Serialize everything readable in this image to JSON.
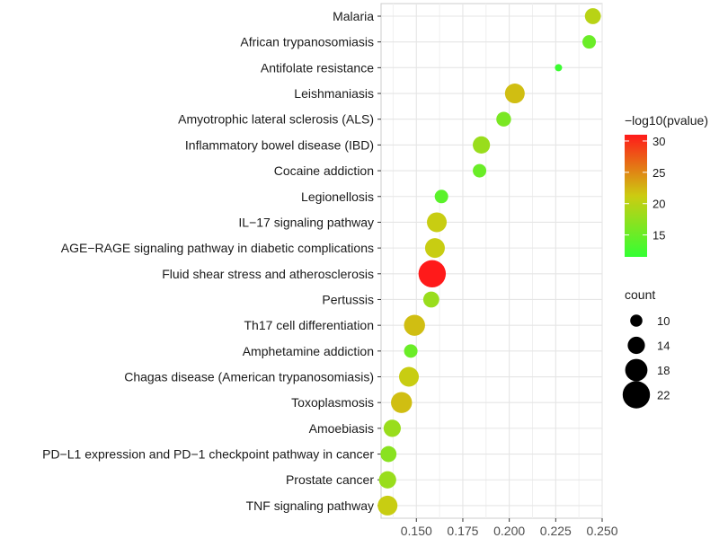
{
  "chart_data": {
    "type": "scatter",
    "title": "",
    "xlabel": "",
    "ylabel": "",
    "xlim": [
      0.131,
      0.25
    ],
    "x_ticks": [
      0.15,
      0.175,
      0.2,
      0.225,
      0.25
    ],
    "x_tick_labels": [
      "0.150",
      "0.175",
      "0.200",
      "0.225",
      "0.250"
    ],
    "grid": true,
    "categories": [
      "Malaria",
      "African trypanosomiasis",
      "Antifolate resistance",
      "Leishmaniasis",
      "Amyotrophic lateral sclerosis (ALS)",
      "Inflammatory bowel disease (IBD)",
      "Cocaine addiction",
      "Legionellosis",
      "IL−17 signaling pathway",
      "AGE−RAGE signaling pathway in diabetic complications",
      "Fluid shear stress and atherosclerosis",
      "Pertussis",
      "Th17 cell differentiation",
      "Amphetamine addiction",
      "Chagas disease (American trypanosomiasis)",
      "Toxoplasmosis",
      "Amoebiasis",
      "PD−L1 expression and PD−1 checkpoint pathway in cancer",
      "Prostate cancer",
      "TNF signaling pathway"
    ],
    "points": [
      {
        "term": "Malaria",
        "gene_ratio": 0.245,
        "count": 13,
        "neglog10p": 20
      },
      {
        "term": "African trypanosomiasis",
        "gene_ratio": 0.243,
        "count": 11,
        "neglog10p": 15
      },
      {
        "term": "Antifolate resistance",
        "gene_ratio": 0.2265,
        "count": 6,
        "neglog10p": 12
      },
      {
        "term": "Leishmaniasis",
        "gene_ratio": 0.203,
        "count": 16,
        "neglog10p": 22
      },
      {
        "term": "Amyotrophic lateral sclerosis (ALS)",
        "gene_ratio": 0.197,
        "count": 12,
        "neglog10p": 16
      },
      {
        "term": "Inflammatory bowel disease (IBD)",
        "gene_ratio": 0.185,
        "count": 14,
        "neglog10p": 18
      },
      {
        "term": "Cocaine addiction",
        "gene_ratio": 0.184,
        "count": 11,
        "neglog10p": 15
      },
      {
        "term": "Legionellosis",
        "gene_ratio": 0.1635,
        "count": 11,
        "neglog10p": 14
      },
      {
        "term": "IL−17 signaling pathway",
        "gene_ratio": 0.161,
        "count": 16,
        "neglog10p": 21
      },
      {
        "term": "AGE−RAGE signaling pathway in diabetic complications",
        "gene_ratio": 0.16,
        "count": 16,
        "neglog10p": 21
      },
      {
        "term": "Fluid shear stress and atherosclerosis",
        "gene_ratio": 0.1585,
        "count": 22,
        "neglog10p": 31
      },
      {
        "term": "Pertussis",
        "gene_ratio": 0.158,
        "count": 13,
        "neglog10p": 18
      },
      {
        "term": "Th17 cell differentiation",
        "gene_ratio": 0.149,
        "count": 17,
        "neglog10p": 22
      },
      {
        "term": "Amphetamine addiction",
        "gene_ratio": 0.147,
        "count": 11,
        "neglog10p": 15
      },
      {
        "term": "Chagas disease (American trypanosomiasis)",
        "gene_ratio": 0.146,
        "count": 16,
        "neglog10p": 21
      },
      {
        "term": "Toxoplasmosis",
        "gene_ratio": 0.142,
        "count": 17,
        "neglog10p": 22
      },
      {
        "term": "Amoebiasis",
        "gene_ratio": 0.137,
        "count": 14,
        "neglog10p": 18
      },
      {
        "term": "PD−L1 expression and PD−1 checkpoint pathway in cancer",
        "gene_ratio": 0.135,
        "count": 13,
        "neglog10p": 17
      },
      {
        "term": "Prostate cancer",
        "gene_ratio": 0.1345,
        "count": 14,
        "neglog10p": 18
      },
      {
        "term": "TNF signaling pathway",
        "gene_ratio": 0.1345,
        "count": 16,
        "neglog10p": 21
      }
    ],
    "color_legend": {
      "title": "−log10(pvalue)",
      "min": 11.5,
      "max": 31,
      "ticks": [
        15,
        20,
        25,
        30
      ],
      "low_color": "#33ff33",
      "mid_color": "#cccc11",
      "high_color": "#ff1a1a"
    },
    "size_legend": {
      "title": "count",
      "values": [
        10,
        14,
        18,
        22
      ]
    },
    "panel_background": "#ffffff",
    "grid_color": "#e5e5e5"
  }
}
